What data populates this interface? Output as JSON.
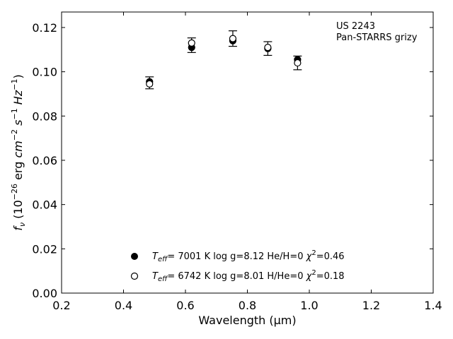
{
  "chart_data": {
    "type": "scatter",
    "xlabel": "Wavelength (μm)",
    "ylabel_parts": [
      "f",
      "ν",
      " (10",
      "−26",
      " erg ",
      "cm",
      "−2",
      " ",
      "s",
      "−1",
      " ",
      "Hz",
      "−1",
      ")"
    ],
    "xlim": [
      0.2,
      1.4
    ],
    "ylim": [
      0.0,
      0.127
    ],
    "xticks": [
      0.2,
      0.4,
      0.6,
      0.8,
      1.0,
      1.2,
      1.4
    ],
    "yticks": [
      0.0,
      0.02,
      0.04,
      0.06,
      0.08,
      0.1,
      0.12
    ],
    "xtick_labels": [
      "0.2",
      "0.4",
      "0.6",
      "0.8",
      "1.0",
      "1.2",
      "1.4"
    ],
    "ytick_labels": [
      "0.00",
      "0.02",
      "0.04",
      "0.06",
      "0.08",
      "0.10",
      "0.12"
    ],
    "annotation": [
      "US 2243",
      "Pan-STARRS grizy"
    ],
    "series": [
      {
        "marker": "filled-circle",
        "legend_parts": [
          "T",
          "eff",
          "=  7001 K  log g=8.12  He/H=0  ",
          "χ",
          "2",
          "=0.46"
        ],
        "x": [
          0.484,
          0.62,
          0.753,
          0.866,
          0.962
        ],
        "y": [
          0.0955,
          0.111,
          0.114,
          0.1105,
          0.1055
        ]
      },
      {
        "marker": "open-circle",
        "legend_parts": [
          "T",
          "eff",
          "=  6742 K  log g=8.01  H/He=0  ",
          "χ",
          "2",
          "=0.18"
        ],
        "x": [
          0.484,
          0.62,
          0.753,
          0.866,
          0.962
        ],
        "y": [
          0.0945,
          0.113,
          0.115,
          0.111,
          0.104
        ]
      }
    ],
    "observed_errors": {
      "x": [
        0.484,
        0.62,
        0.753,
        0.866,
        0.962
      ],
      "y": [
        0.095,
        0.112,
        0.115,
        0.1105,
        0.104
      ],
      "err": [
        0.0027,
        0.0033,
        0.0035,
        0.0031,
        0.0031
      ]
    },
    "grid": false
  }
}
